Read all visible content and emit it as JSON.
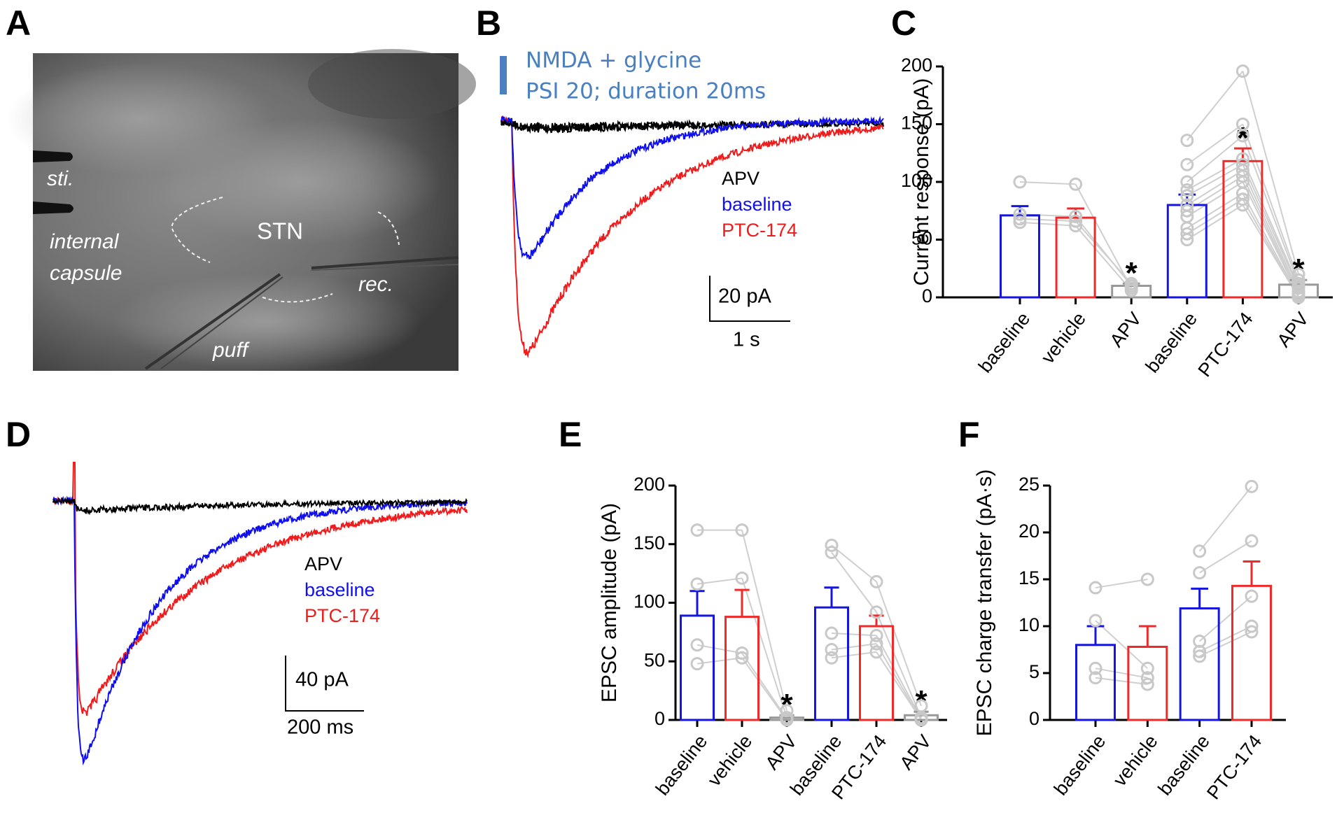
{
  "panel_labels": [
    "A",
    "B",
    "C",
    "D",
    "E",
    "F"
  ],
  "panel_a": {
    "labels": [
      "sti.",
      "internal",
      "capsule",
      "STN",
      "rec.",
      "puff"
    ]
  },
  "panel_b": {
    "stimulus": [
      "NMDA + glycine",
      "PSI 20; duration 20ms"
    ],
    "traces": [
      {
        "name": "APV",
        "color": "#000000"
      },
      {
        "name": "baseline",
        "color": "#1010ee"
      },
      {
        "name": "PTC-174",
        "color": "#ee1c1c"
      }
    ],
    "scale_y": "20 pA",
    "scale_x": "1 s"
  },
  "panel_d": {
    "traces": [
      {
        "name": "APV",
        "color": "#000000"
      },
      {
        "name": "baseline",
        "color": "#1010ee"
      },
      {
        "name": "PTC-174",
        "color": "#ee1c1c"
      }
    ],
    "scale_y": "40 pA",
    "scale_x": "200 ms"
  },
  "chart_data": [
    {
      "type": "bar",
      "y_label": "Current response (pA)",
      "categories": [
        "baseline",
        "vehicle",
        "APV",
        "baseline",
        "PTC-174",
        "APV"
      ],
      "values": [
        71,
        69,
        10,
        80,
        118,
        11
      ],
      "errors": [
        8,
        8,
        2,
        9,
        11,
        4
      ],
      "colors": [
        "#1515e0",
        "#ee2a2a",
        "#999999",
        "#1515e0",
        "#ee2a2a",
        "#999999"
      ],
      "points": [
        [
          100,
          72,
          68,
          65
        ],
        [
          98,
          70,
          66,
          62
        ],
        [
          8,
          10,
          12,
          6
        ],
        [
          136,
          115,
          100,
          93,
          88,
          80,
          75,
          70,
          60,
          55,
          50
        ],
        [
          196,
          150,
          140,
          120,
          115,
          110,
          105,
          100,
          90,
          85,
          80
        ],
        [
          20,
          15,
          12,
          10,
          8,
          5,
          3,
          2,
          1,
          0,
          0
        ]
      ],
      "stars": [
        null,
        null,
        "*",
        null,
        "*",
        "*"
      ],
      "ylim": [
        0,
        200
      ],
      "yticks": [
        0,
        50,
        100,
        150,
        200
      ]
    },
    {
      "type": "bar",
      "y_label": "EPSC amplitude (pA)",
      "categories": [
        "baseline",
        "vehicle",
        "APV",
        "baseline",
        "PTC-174",
        "APV"
      ],
      "values": [
        89,
        88,
        2,
        96,
        80,
        4
      ],
      "errors": [
        21,
        23,
        2,
        17,
        9,
        3
      ],
      "colors": [
        "#1515e0",
        "#ee2a2a",
        "#999999",
        "#1515e0",
        "#ee2a2a",
        "#999999"
      ],
      "points": [
        [
          162,
          116,
          64,
          48
        ],
        [
          162,
          121,
          57,
          53
        ],
        [
          8,
          2,
          1,
          0
        ],
        [
          149,
          143,
          74,
          60,
          53
        ],
        [
          118,
          92,
          72,
          65,
          58
        ],
        [
          12,
          2,
          1,
          0,
          0
        ]
      ],
      "stars": [
        null,
        null,
        "*",
        null,
        null,
        "*"
      ],
      "ylim": [
        0,
        200
      ],
      "yticks": [
        0,
        50,
        100,
        150,
        200
      ]
    },
    {
      "type": "bar",
      "y_label": "EPSC charge transfer (pA·s)",
      "categories": [
        "baseline",
        "vehicle",
        "baseline",
        "PTC-174"
      ],
      "values": [
        8,
        7.8,
        11.9,
        14.3
      ],
      "errors": [
        2,
        2.2,
        2.1,
        2.6
      ],
      "colors": [
        "#1515e0",
        "#ee2a2a",
        "#1515e0",
        "#ee2a2a"
      ],
      "points": [
        [
          14.1,
          10.6,
          5.5,
          4.5
        ],
        [
          15,
          5.5,
          4.5,
          3.8
        ],
        [
          18,
          15.7,
          8.4,
          7.3,
          6.8
        ],
        [
          24.9,
          19.1,
          13.2,
          10,
          9.4
        ]
      ],
      "ylim": [
        0,
        25
      ],
      "yticks": [
        0,
        5,
        10,
        15,
        20,
        25
      ]
    }
  ]
}
